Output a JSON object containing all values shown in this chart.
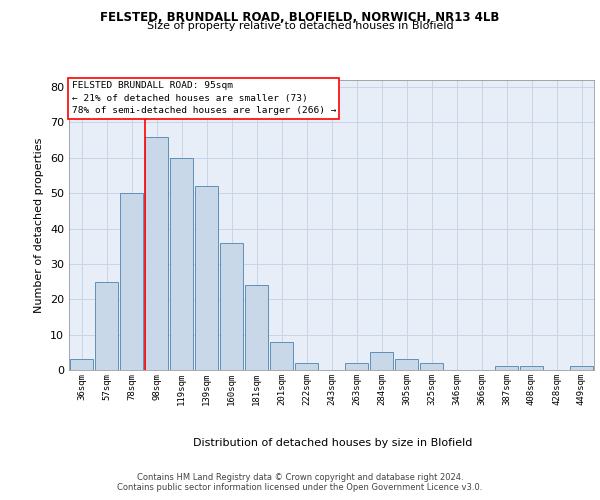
{
  "title1": "FELSTED, BRUNDALL ROAD, BLOFIELD, NORWICH, NR13 4LB",
  "title2": "Size of property relative to detached houses in Blofield",
  "xlabel": "Distribution of detached houses by size in Blofield",
  "ylabel": "Number of detached properties",
  "categories": [
    "36sqm",
    "57sqm",
    "78sqm",
    "98sqm",
    "119sqm",
    "139sqm",
    "160sqm",
    "181sqm",
    "201sqm",
    "222sqm",
    "243sqm",
    "263sqm",
    "284sqm",
    "305sqm",
    "325sqm",
    "346sqm",
    "366sqm",
    "387sqm",
    "408sqm",
    "428sqm",
    "449sqm"
  ],
  "values": [
    3,
    25,
    50,
    66,
    60,
    52,
    36,
    24,
    8,
    2,
    0,
    2,
    5,
    3,
    2,
    0,
    0,
    1,
    1,
    0,
    1
  ],
  "bar_color": "#c8d8e8",
  "bar_edge_color": "#6090b8",
  "grid_color": "#c8d4e8",
  "vline_color": "red",
  "vline_bar_idx": 3,
  "annotation_line1": "FELSTED BRUNDALL ROAD: 95sqm",
  "annotation_line2": "← 21% of detached houses are smaller (73)",
  "annotation_line3": "78% of semi-detached houses are larger (266) →",
  "footer1": "Contains HM Land Registry data © Crown copyright and database right 2024.",
  "footer2": "Contains public sector information licensed under the Open Government Licence v3.0.",
  "ylim": [
    0,
    82
  ],
  "yticks": [
    0,
    10,
    20,
    30,
    40,
    50,
    60,
    70,
    80
  ],
  "bg_color": "#e8eef8"
}
